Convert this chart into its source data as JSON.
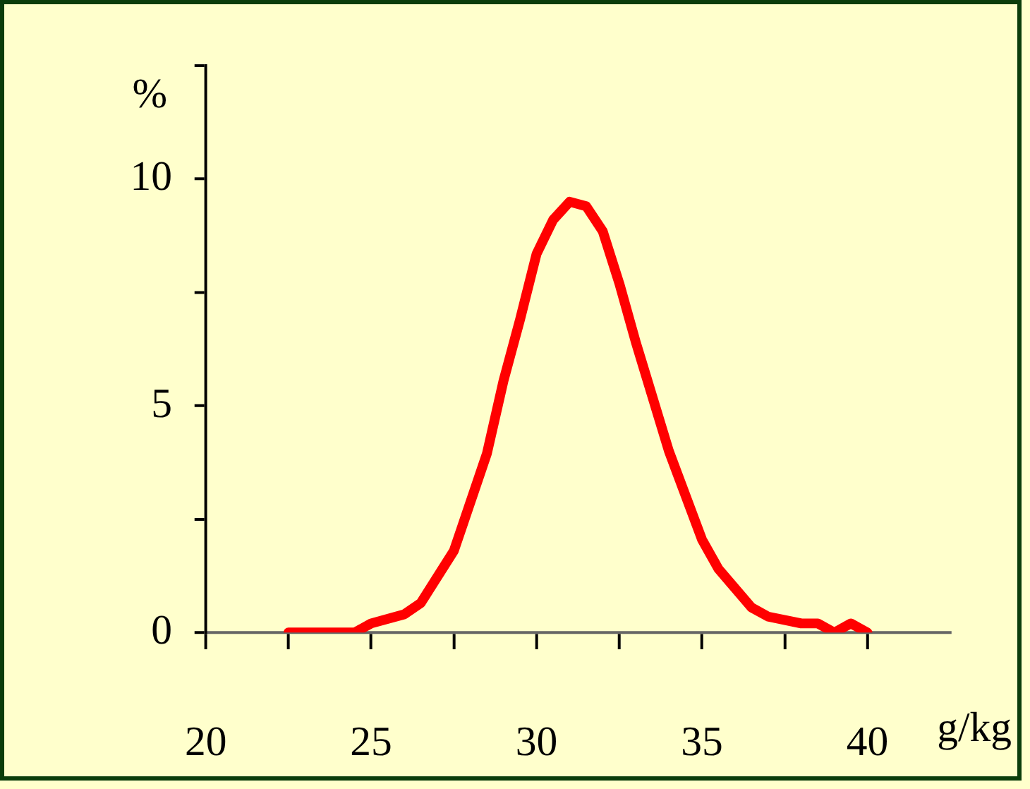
{
  "chart_data": {
    "type": "line",
    "xlabel": "g/kg",
    "ylabel": "%",
    "x": [
      22.5,
      24.5,
      25,
      26,
      26.5,
      27.5,
      28.5,
      29,
      29.5,
      30,
      30.5,
      31,
      31.5,
      32,
      32.5,
      33,
      34,
      35,
      35.5,
      36.5,
      37,
      38,
      38.5,
      39,
      39.5,
      40
    ],
    "series": [
      {
        "color": "#ff0000",
        "values": [
          0,
          0,
          0.2,
          0.4,
          0.65,
          1.8,
          3.95,
          5.55,
          6.9,
          8.35,
          9.1,
          9.5,
          9.4,
          8.85,
          7.7,
          6.4,
          4.0,
          2.05,
          1.4,
          0.55,
          0.35,
          0.2,
          0.2,
          0,
          0.2,
          0
        ]
      }
    ],
    "xlim": [
      20,
      42.5
    ],
    "xticks": [
      20,
      {
        "value": 22.5,
        "label": null
      },
      25,
      {
        "value": 27.5,
        "label": null
      },
      30,
      {
        "value": 32.5,
        "label": null
      },
      35,
      {
        "value": 37.5,
        "label": null
      },
      40
    ],
    "ylim": [
      0,
      12.5
    ],
    "yticks": [
      0,
      {
        "value": 2.5,
        "label": null
      },
      5,
      {
        "value": 7.5,
        "label": null
      },
      10,
      {
        "value": 12.5,
        "label": null
      }
    ],
    "grid": false,
    "legend": false,
    "marker": "none",
    "line_style": "solid"
  }
}
